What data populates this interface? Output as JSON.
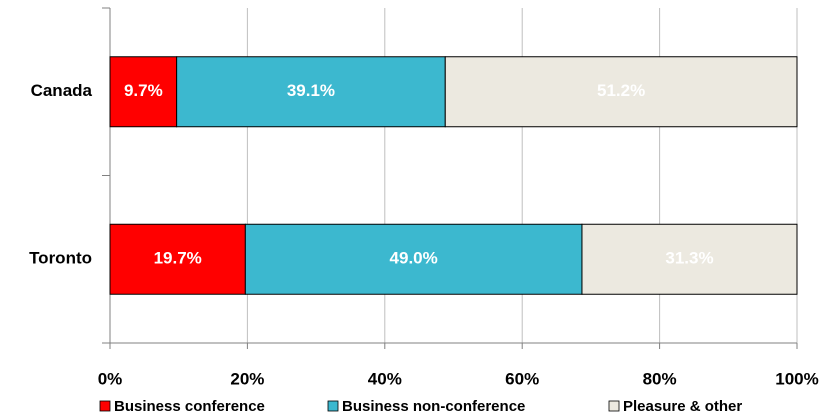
{
  "chart_data": {
    "type": "bar",
    "orientation": "horizontal",
    "stacked": true,
    "categories": [
      "Canada",
      "Toronto"
    ],
    "series": [
      {
        "name": "Business conference",
        "color": "#ff0000",
        "values": [
          9.7,
          19.7
        ],
        "value_labels": [
          "9.7%",
          "19.7%"
        ]
      },
      {
        "name": "Business non-conference",
        "color": "#3cb8cf",
        "values": [
          39.1,
          49.0
        ],
        "value_labels": [
          "39.1%",
          "49.0%"
        ]
      },
      {
        "name": "Pleasure & other",
        "color": "#ece9e0",
        "values": [
          51.2,
          31.3
        ],
        "value_labels": [
          "51.2%",
          "31.3%"
        ]
      }
    ],
    "xlim": [
      0,
      100
    ],
    "xticks": [
      {
        "value": 0,
        "label": "0%"
      },
      {
        "value": 20,
        "label": "20%"
      },
      {
        "value": 40,
        "label": "40%"
      },
      {
        "value": 60,
        "label": "60%"
      },
      {
        "value": 80,
        "label": "80%"
      },
      {
        "value": 100,
        "label": "100%"
      }
    ],
    "grid": true,
    "legend": "bottom"
  }
}
